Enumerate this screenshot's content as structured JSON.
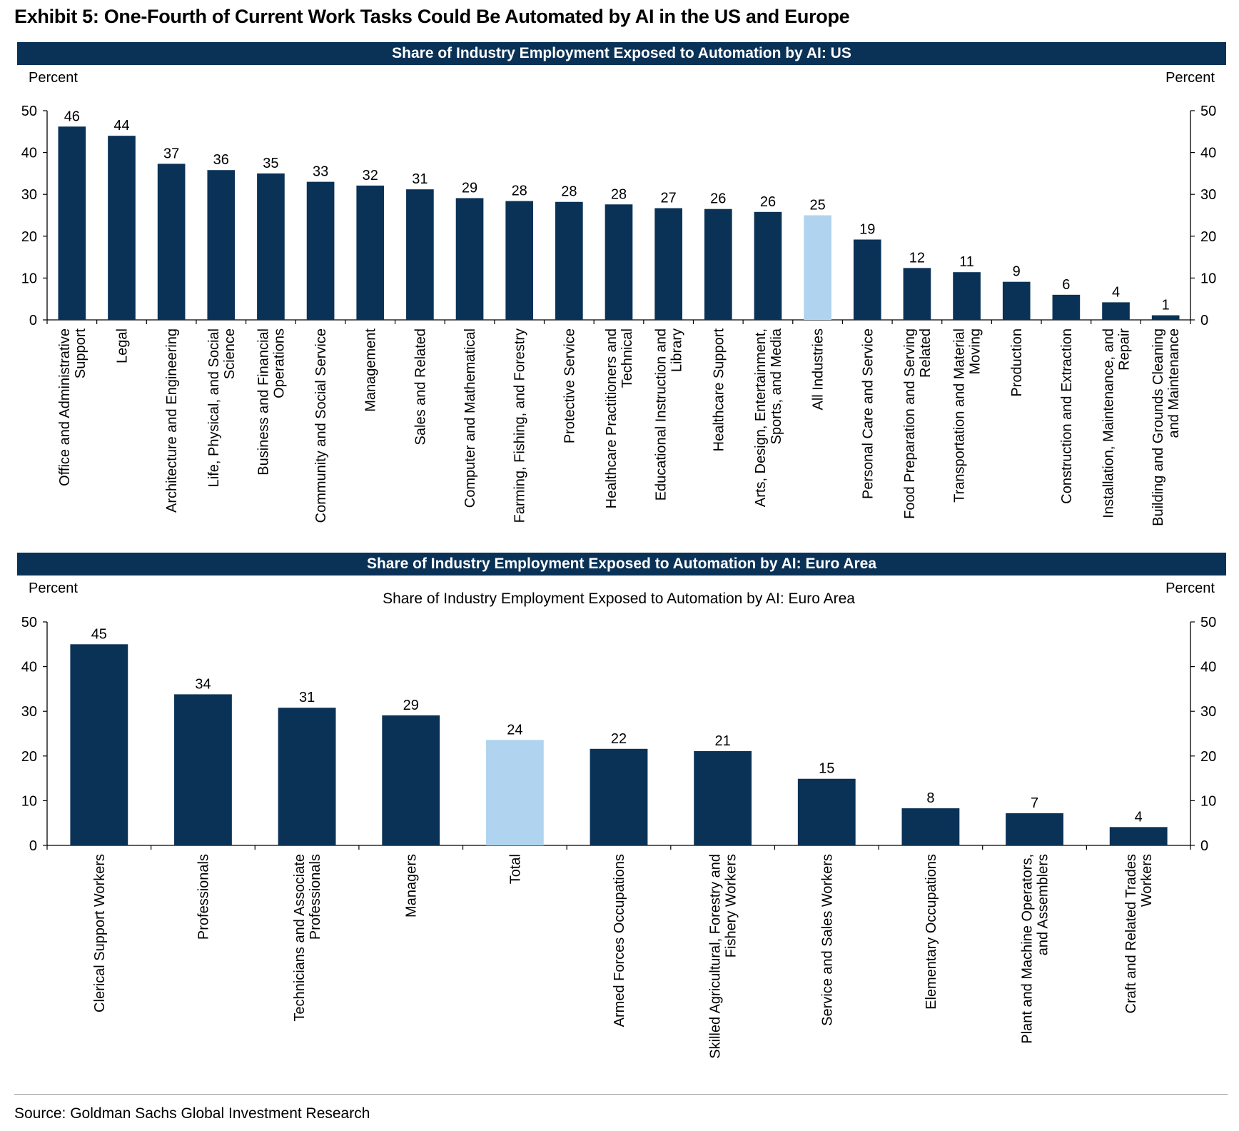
{
  "exhibit_title": "Exhibit 5: One-Fourth of Current Work Tasks Could Be Automated by AI in the US and Europe",
  "source": "Source: Goldman Sachs Global Investment Research",
  "colors": {
    "bar": "#0a3257",
    "highlight": "#b0d4ef",
    "banner": "#0a3257"
  },
  "chart_data": [
    {
      "type": "bar",
      "banner_title": "Share of Industry Employment Exposed to Automation by AI: US",
      "title": "",
      "left_axis_label": "Percent",
      "right_axis_label": "Percent",
      "ylim": [
        0,
        50
      ],
      "yticks": [
        0,
        10,
        20,
        30,
        40,
        50
      ],
      "grid": false,
      "data_labels": true,
      "highlight_category": "All Industries",
      "categories": [
        "Office and Administrative Support",
        "Legal",
        "Architecture and Engineering",
        "Life, Physical, and Social Science",
        "Business and Financial Operations",
        "Community and Social Service",
        "Management",
        "Sales and Related",
        "Computer and Mathematical",
        "Farming, Fishing, and Forestry",
        "Protective Service",
        "Healthcare Practitioners and Technical",
        "Educational Instruction and Library",
        "Healthcare Support",
        "Arts, Design, Entertainment, Sports, and Media",
        "All Industries",
        "Personal Care and Service",
        "Food Preparation and Serving Related",
        "Transportation and Material Moving",
        "Production",
        "Construction and Extraction",
        "Installation, Maintenance, and Repair",
        "Building and Grounds Cleaning and Maintenance"
      ],
      "category_label_lines": [
        [
          "Office and Administrative",
          "Support"
        ],
        [
          "Legal"
        ],
        [
          "Architecture and Engineering"
        ],
        [
          "Life, Physical, and Social",
          "Science"
        ],
        [
          "Business and Financial",
          "Operations"
        ],
        [
          "Community and Social Service"
        ],
        [
          "Management"
        ],
        [
          "Sales and Related"
        ],
        [
          "Computer and Mathematical"
        ],
        [
          "Farming, Fishing, and Forestry"
        ],
        [
          "Protective Service"
        ],
        [
          "Healthcare Practitioners and",
          "Technical"
        ],
        [
          "Educational Instruction and",
          "Library"
        ],
        [
          "Healthcare Support"
        ],
        [
          "Arts, Design, Entertainment,",
          "Sports, and Media"
        ],
        [
          "All Industries"
        ],
        [
          "Personal Care and Service"
        ],
        [
          "Food Preparation and Serving",
          "Related"
        ],
        [
          "Transportation and Material",
          "Moving"
        ],
        [
          "Production"
        ],
        [
          "Construction and Extraction"
        ],
        [
          "Installation, Maintenance, and",
          "Repair"
        ],
        [
          "Building and Grounds Cleaning",
          "and Maintenance"
        ]
      ],
      "values": [
        46,
        44,
        37,
        36,
        35,
        33,
        32,
        31,
        29,
        28,
        28,
        28,
        27,
        26,
        26,
        25,
        19,
        12,
        11,
        9,
        6,
        4,
        1
      ],
      "plot_values": [
        46.2,
        44.0,
        37.3,
        35.8,
        35.0,
        33.0,
        32.1,
        31.2,
        29.1,
        28.4,
        28.2,
        27.6,
        26.7,
        26.5,
        25.8,
        25.0,
        19.2,
        12.4,
        11.4,
        9.1,
        6.0,
        4.2,
        1.1
      ]
    },
    {
      "type": "bar",
      "banner_title": "Share of Industry Employment Exposed to Automation by AI: Euro Area",
      "title": "Share of Industry Employment Exposed to Automation by AI: Euro Area",
      "left_axis_label": "Percent",
      "right_axis_label": "Percent",
      "ylim": [
        0,
        50
      ],
      "yticks": [
        0,
        10,
        20,
        30,
        40,
        50
      ],
      "grid": false,
      "data_labels": true,
      "highlight_category": "Total",
      "categories": [
        "Clerical Support Workers",
        "Professionals",
        "Technicians and Associate Professionals",
        "Managers",
        "Total",
        "Armed Forces Occupations",
        "Skilled Agricultural, Forestry and Fishery Workers",
        "Service and Sales Workers",
        "Elementary Occupations",
        "Plant and Machine Operators, and Assemblers",
        "Craft and Related Trades Workers"
      ],
      "category_label_lines": [
        [
          "Clerical Support Workers"
        ],
        [
          "Professionals"
        ],
        [
          "Technicians and Associate",
          "Professionals"
        ],
        [
          "Managers"
        ],
        [
          "Total"
        ],
        [
          "Armed Forces Occupations"
        ],
        [
          "Skilled Agricultural, Forestry and",
          "Fishery Workers"
        ],
        [
          "Service and Sales Workers"
        ],
        [
          "Elementary Occupations"
        ],
        [
          "Plant and Machine Operators,",
          "and Assemblers"
        ],
        [
          "Craft and Related Trades",
          "Workers"
        ]
      ],
      "values": [
        45,
        34,
        31,
        29,
        24,
        22,
        21,
        15,
        8,
        7,
        4
      ],
      "plot_values": [
        45.0,
        33.8,
        30.8,
        29.1,
        23.6,
        21.6,
        21.1,
        14.9,
        8.3,
        7.2,
        4.1
      ]
    }
  ]
}
